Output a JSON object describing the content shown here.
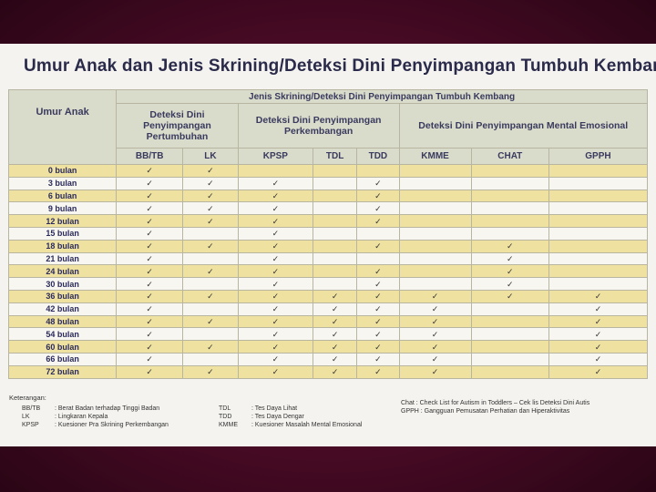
{
  "title": "Umur Anak dan Jenis Skrining/Deteksi Dini Penyimpangan Tumbuh Kembang",
  "headers": {
    "age": "Umur Anak",
    "group_top": "Jenis Skrining/Deteksi Dini Penyimpangan Tumbuh Kembang",
    "group1": "Deteksi Dini Penyimpangan Pertumbuhan",
    "group2": "Deteksi Dini Penyimpangan Perkembangan",
    "group3": "Deteksi Dini Penyimpangan Mental Emosional",
    "cols": [
      "BB/TB",
      "LK",
      "KPSP",
      "TDL",
      "TDD",
      "KMME",
      "CHAT",
      "GPPH"
    ]
  },
  "check_symbol": "✓",
  "rows": [
    {
      "age": "0   bulan",
      "checks": [
        1,
        1,
        0,
        0,
        0,
        0,
        0,
        0
      ]
    },
    {
      "age": "3   bulan",
      "checks": [
        1,
        1,
        1,
        0,
        1,
        0,
        0,
        0
      ]
    },
    {
      "age": "6   bulan",
      "checks": [
        1,
        1,
        1,
        0,
        1,
        0,
        0,
        0
      ]
    },
    {
      "age": "9   bulan",
      "checks": [
        1,
        1,
        1,
        0,
        1,
        0,
        0,
        0
      ]
    },
    {
      "age": "12 bulan",
      "checks": [
        1,
        1,
        1,
        0,
        1,
        0,
        0,
        0
      ]
    },
    {
      "age": "15 bulan",
      "checks": [
        1,
        0,
        1,
        0,
        0,
        0,
        0,
        0
      ]
    },
    {
      "age": "18 bulan",
      "checks": [
        1,
        1,
        1,
        0,
        1,
        0,
        1,
        0
      ]
    },
    {
      "age": "21 bulan",
      "checks": [
        1,
        0,
        1,
        0,
        0,
        0,
        1,
        0
      ]
    },
    {
      "age": "24 bulan",
      "checks": [
        1,
        1,
        1,
        0,
        1,
        0,
        1,
        0
      ]
    },
    {
      "age": "30 bulan",
      "checks": [
        1,
        0,
        1,
        0,
        1,
        0,
        1,
        0
      ]
    },
    {
      "age": "36 bulan",
      "checks": [
        1,
        1,
        1,
        1,
        1,
        1,
        1,
        1
      ]
    },
    {
      "age": "42 bulan",
      "checks": [
        1,
        0,
        1,
        1,
        1,
        1,
        0,
        1
      ]
    },
    {
      "age": "48 bulan",
      "checks": [
        1,
        1,
        1,
        1,
        1,
        1,
        0,
        1
      ]
    },
    {
      "age": "54 bulan",
      "checks": [
        1,
        0,
        1,
        1,
        1,
        1,
        0,
        1
      ]
    },
    {
      "age": "60 bulan",
      "checks": [
        1,
        1,
        1,
        1,
        1,
        1,
        0,
        1
      ]
    },
    {
      "age": "66 bulan",
      "checks": [
        1,
        0,
        1,
        1,
        1,
        1,
        0,
        1
      ]
    },
    {
      "age": "72 bulan",
      "checks": [
        1,
        1,
        1,
        1,
        1,
        1,
        0,
        1
      ]
    }
  ],
  "legend": {
    "heading": "Keterangan:",
    "col1": [
      {
        "k": "BB/TB",
        "v": ": Berat Badan terhadap Tinggi Badan"
      },
      {
        "k": "LK",
        "v": ": Lingkaran Kepala"
      },
      {
        "k": "KPSP",
        "v": ": Kuesioner Pra Skrining Perkembangan"
      }
    ],
    "col2": [
      {
        "k": "TDL",
        "v": ": Tes Daya Lihat"
      },
      {
        "k": "TDD",
        "v": ": Tes Daya Dengar"
      },
      {
        "k": "KMME",
        "v": ": Kuesioner Masalah Mental Emosional"
      }
    ],
    "col3": [
      {
        "k": "",
        "v": "Chat : Check List for Autism in Toddlers – Cek lis Deteksi Dini Autis"
      },
      {
        "k": "",
        "v": "GPPH : Gangguan Pemusatan Perhatian dan Hiperaktivitas"
      }
    ]
  }
}
